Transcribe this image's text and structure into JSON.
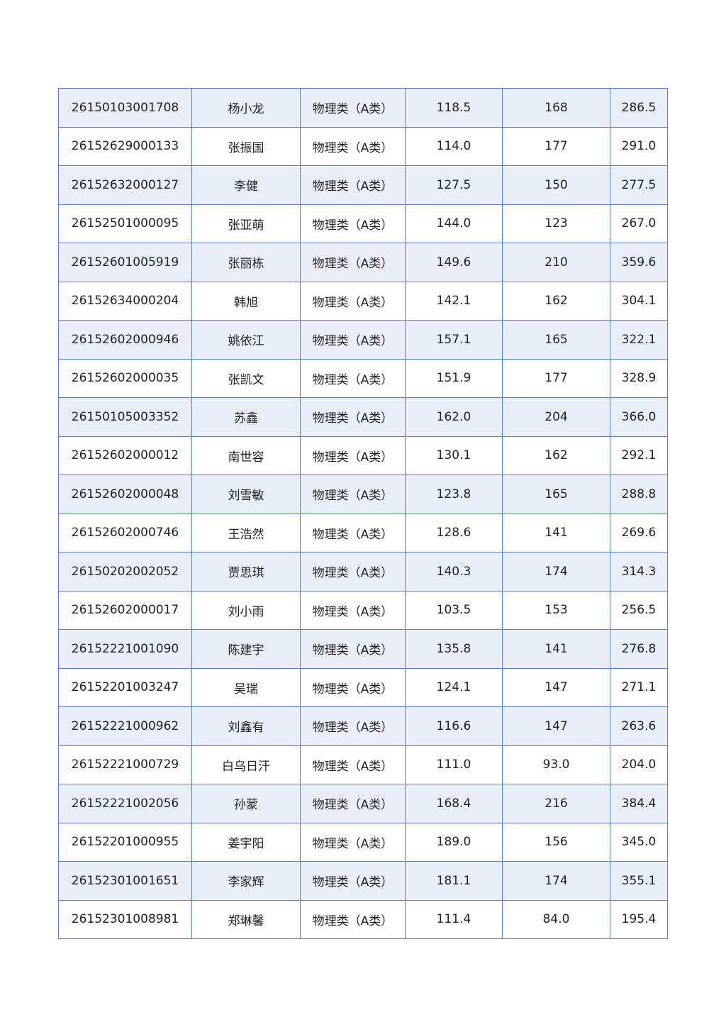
{
  "colors": {
    "border": "#5b7fce",
    "shaded_row": "#e9eef9"
  },
  "rows": [
    [
      "26150103001708",
      "杨小龙",
      "物理类（A类）",
      "118.5",
      "168",
      "286.5"
    ],
    [
      "26152629000133",
      "张振国",
      "物理类（A类）",
      "114.0",
      "177",
      "291.0"
    ],
    [
      "26152632000127",
      "李健",
      "物理类（A类）",
      "127.5",
      "150",
      "277.5"
    ],
    [
      "26152501000095",
      "张亚萌",
      "物理类（A类）",
      "144.0",
      "123",
      "267.0"
    ],
    [
      "26152601005919",
      "张丽栋",
      "物理类（A类）",
      "149.6",
      "210",
      "359.6"
    ],
    [
      "26152634000204",
      "韩旭",
      "物理类（A类）",
      "142.1",
      "162",
      "304.1"
    ],
    [
      "26152602000946",
      "姚依江",
      "物理类（A类）",
      "157.1",
      "165",
      "322.1"
    ],
    [
      "26152602000035",
      "张凯文",
      "物理类（A类）",
      "151.9",
      "177",
      "328.9"
    ],
    [
      "26150105003352",
      "苏鑫",
      "物理类（A类）",
      "162.0",
      "204",
      "366.0"
    ],
    [
      "26152602000012",
      "南世容",
      "物理类（A类）",
      "130.1",
      "162",
      "292.1"
    ],
    [
      "26152602000048",
      "刘雪敏",
      "物理类（A类）",
      "123.8",
      "165",
      "288.8"
    ],
    [
      "26152602000746",
      "王浩然",
      "物理类（A类）",
      "128.6",
      "141",
      "269.6"
    ],
    [
      "26150202002052",
      "贾思琪",
      "物理类（A类）",
      "140.3",
      "174",
      "314.3"
    ],
    [
      "26152602000017",
      "刘小雨",
      "物理类（A类）",
      "103.5",
      "153",
      "256.5"
    ],
    [
      "26152221001090",
      "陈建宇",
      "物理类（A类）",
      "135.8",
      "141",
      "276.8"
    ],
    [
      "26152201003247",
      "吴瑞",
      "物理类（A类）",
      "124.1",
      "147",
      "271.1"
    ],
    [
      "26152221000962",
      "刘鑫有",
      "物理类（A类）",
      "116.6",
      "147",
      "263.6"
    ],
    [
      "26152221000729",
      "白乌日汗",
      "物理类（A类）",
      "111.0",
      "93.0",
      "204.0"
    ],
    [
      "26152221002056",
      "孙蒙",
      "物理类（A类）",
      "168.4",
      "216",
      "384.4"
    ],
    [
      "26152201000955",
      "姜宇阳",
      "物理类（A类）",
      "189.0",
      "156",
      "345.0"
    ],
    [
      "26152301001651",
      "李家辉",
      "物理类（A类）",
      "181.1",
      "174",
      "355.1"
    ],
    [
      "26152301008981",
      "郑琳馨",
      "物理类（A类）",
      "111.4",
      "84.0",
      "195.4"
    ]
  ]
}
